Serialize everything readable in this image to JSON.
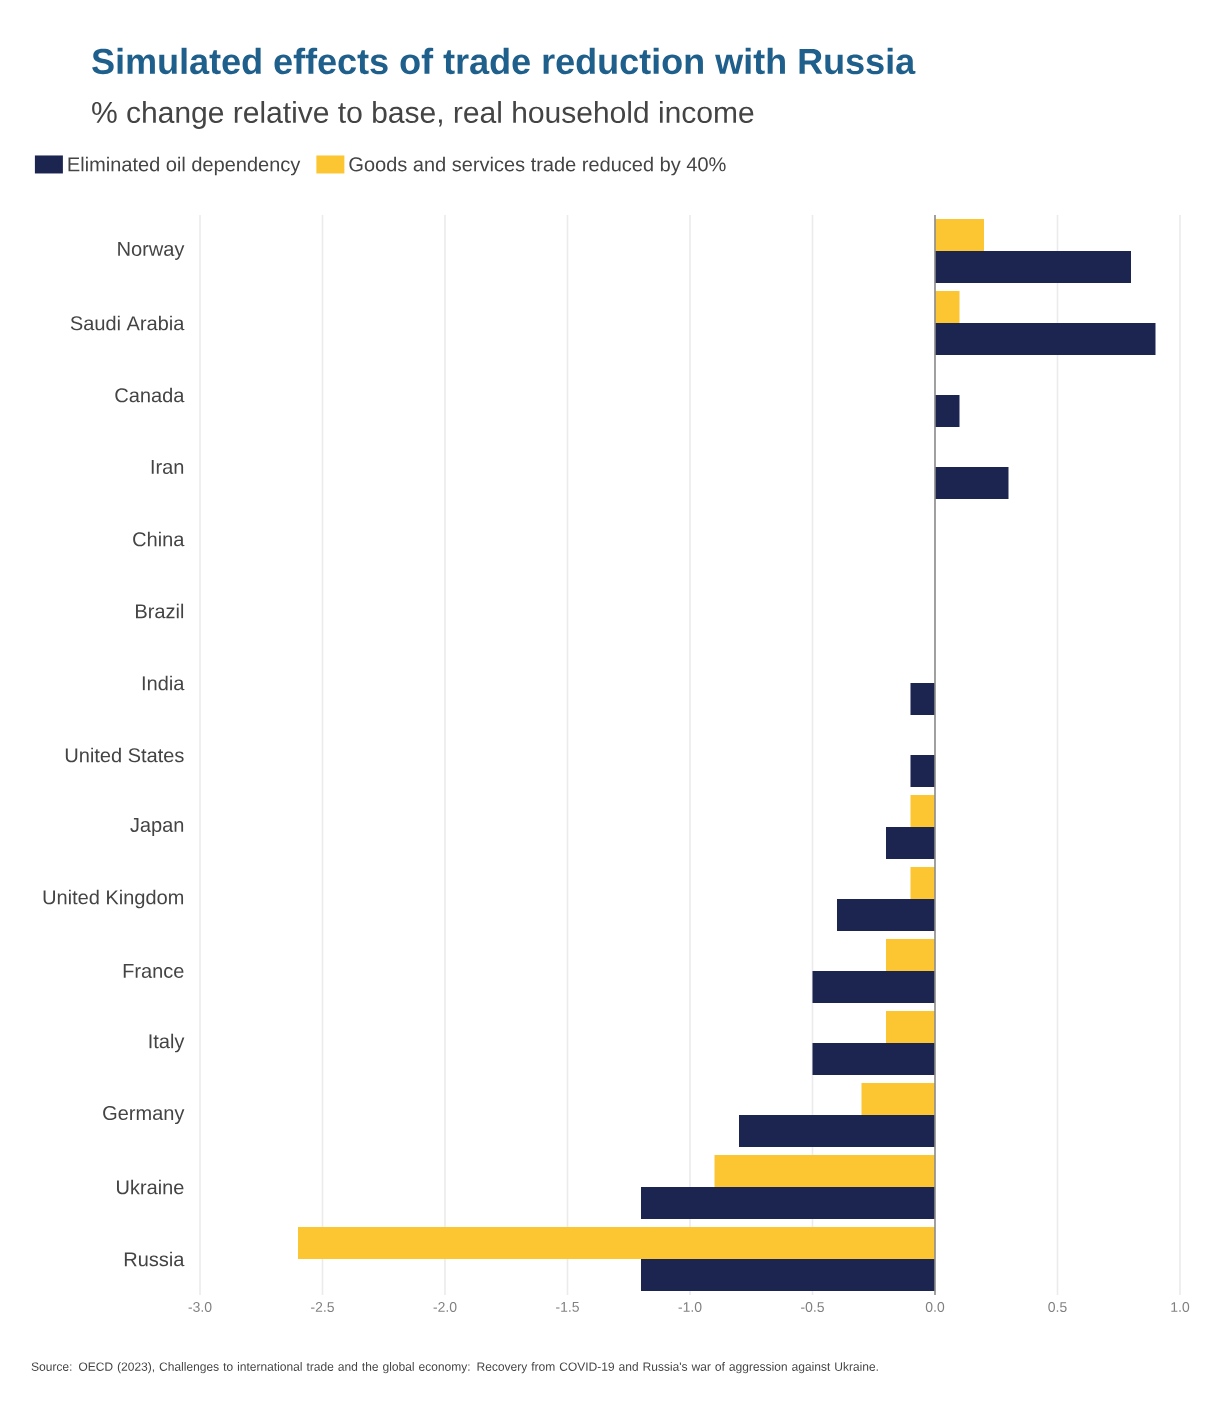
{
  "chart_data": {
    "type": "bar",
    "orientation": "horizontal",
    "title": "Simulated effects of trade reduction with Russia",
    "subtitle": "% change relative to base, real household income",
    "categories": [
      "Norway",
      "Saudi Arabia",
      "Canada",
      "Iran",
      "China",
      "Brazil",
      "India",
      "United States",
      "Japan",
      "United Kingdom",
      "France",
      "Italy",
      "Germany",
      "Ukraine",
      "Russia"
    ],
    "series": [
      {
        "name": "Eliminated oil dependency",
        "color": "#1b2550",
        "values": [
          0.8,
          0.9,
          0.1,
          0.3,
          0,
          0,
          -0.1,
          -0.1,
          -0.2,
          -0.4,
          -0.5,
          -0.5,
          -0.8,
          -1.2,
          -1.2
        ]
      },
      {
        "name": "Goods and services trade reduced by 40%",
        "color": "#fcc532",
        "values": [
          0.2,
          0.1,
          0,
          0,
          0,
          0,
          0,
          0,
          -0.1,
          -0.1,
          -0.2,
          -0.2,
          -0.3,
          -0.9,
          -2.6
        ]
      }
    ],
    "xlim": [
      -3,
      1
    ],
    "xticks": [
      {
        "value": -3,
        "label": "-3.0"
      },
      {
        "value": -2.5,
        "label": "-2.5"
      },
      {
        "value": -2,
        "label": "-2.0"
      },
      {
        "value": -1.5,
        "label": "-1.5"
      },
      {
        "value": -1,
        "label": "-1.0"
      },
      {
        "value": -0.5,
        "label": "-0.5"
      },
      {
        "value": 0,
        "label": "0.0"
      },
      {
        "value": 0.5,
        "label": "0.5"
      },
      {
        "value": 1,
        "label": "1.0"
      }
    ],
    "grid": "x",
    "legend": "top left",
    "annotations": [
      "Source: OECD (2023), Challenges to international trade and the global economy: Recovery from COVID-19 and Russia's war of aggression against Ukraine."
    ]
  }
}
